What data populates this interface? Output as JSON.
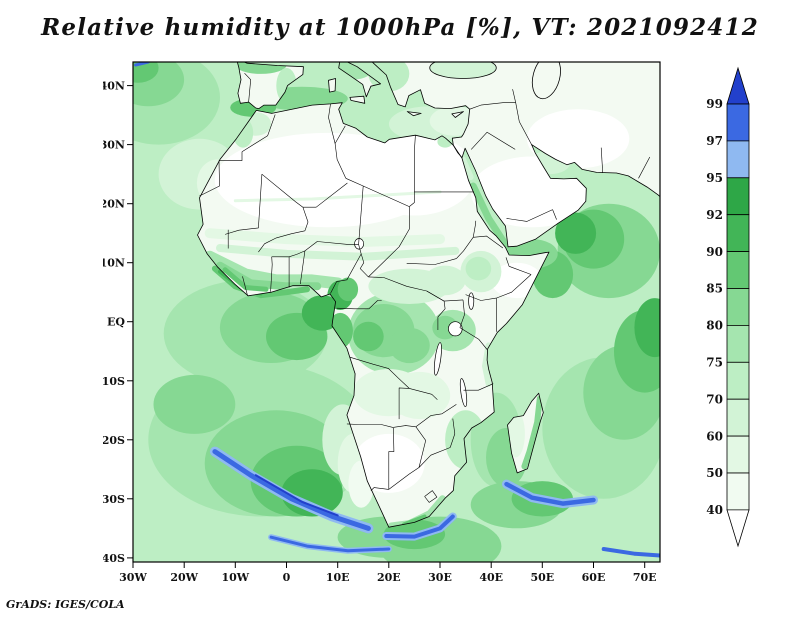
{
  "title": "Relative humidity at 1000hPa [%], VT: 2021092412",
  "credit": "GrADS: IGES/COLA",
  "map": {
    "y_ticks": [
      "40N",
      "30N",
      "20N",
      "10N",
      "EQ",
      "10S",
      "20S",
      "30S",
      "40S"
    ],
    "x_ticks": [
      "30W",
      "20W",
      "10W",
      "0",
      "10E",
      "20E",
      "30E",
      "40E",
      "50E",
      "60E",
      "70E"
    ]
  },
  "colorbar": {
    "levels": [
      "99",
      "97",
      "95",
      "92",
      "90",
      "85",
      "80",
      "75",
      "70",
      "60",
      "50",
      "40"
    ],
    "segments": [
      "#2240cc",
      "#3b69e2",
      "#8fb9f1",
      "#2ea747",
      "#42b557",
      "#63c873",
      "#86d893",
      "#a5e5af",
      "#bdeec4",
      "#d2f3d6",
      "#e3f8e4",
      "#f1fbf1",
      "#ffffff"
    ]
  },
  "palette": {
    "c40": "#f1fbf1",
    "c50": "#e3f8e4",
    "c60": "#d2f3d6",
    "c70": "#bdeec4",
    "c75": "#a5e5af",
    "c80": "#86d893",
    "c85": "#63c873",
    "c90": "#42b557",
    "c92": "#2ea747",
    "c95": "#8fb9f1",
    "c97": "#3b69e2",
    "c99": "#2240cc",
    "white": "#ffffff",
    "land": "#f3faf2",
    "outline": "#000000"
  }
}
